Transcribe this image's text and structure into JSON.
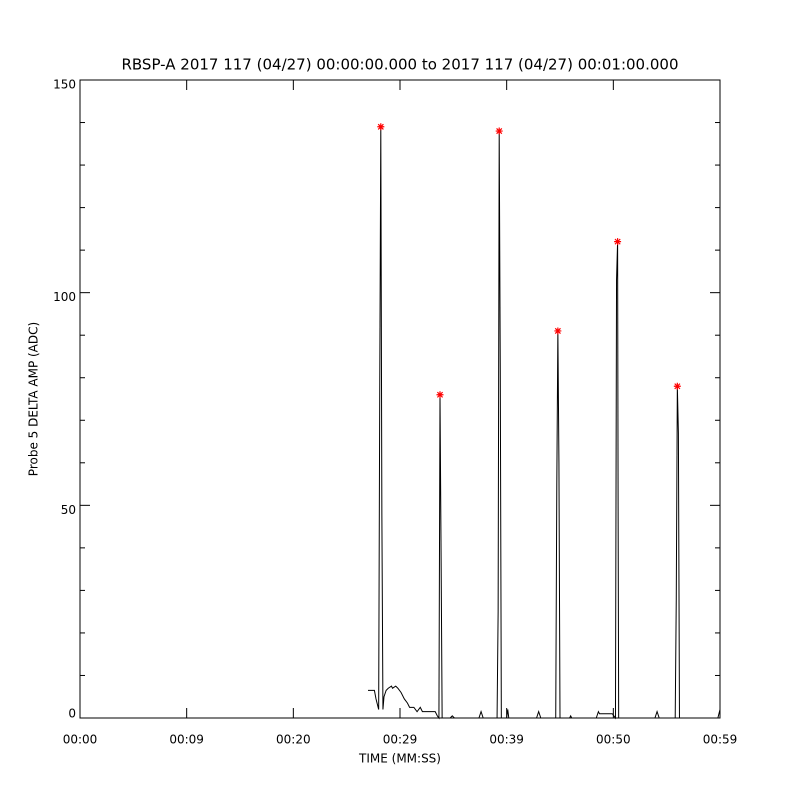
{
  "chart_data": {
    "type": "line",
    "title": "RBSP-A 2017 117 (04/27) 00:00:00.000 to 2017 117 (04/27) 00:01:00.000",
    "x_label": "TIME (MM:SS)",
    "y_label": "Probe 5 DELTA AMP (ADC)",
    "xlim": [
      0,
      60
    ],
    "ylim": [
      0,
      150
    ],
    "xticks": [
      {
        "value": 0,
        "label": "00:00"
      },
      {
        "value": 10,
        "label": "00:09"
      },
      {
        "value": 20,
        "label": "00:20"
      },
      {
        "value": 30,
        "label": "00:29"
      },
      {
        "value": 40,
        "label": "00:39"
      },
      {
        "value": 50,
        "label": "00:50"
      },
      {
        "value": 60,
        "label": "00:59"
      }
    ],
    "yticks": [
      0,
      50,
      100,
      150
    ],
    "yminorticks": [
      10,
      20,
      30,
      40,
      60,
      70,
      80,
      90,
      110,
      120,
      130,
      140
    ],
    "series": [
      {
        "color": "#000000",
        "x": [
          27.0,
          27.6,
          27.75,
          27.9,
          28.0,
          28.1,
          28.2,
          28.3,
          28.4,
          28.5,
          28.7,
          28.9,
          29.2,
          29.3,
          29.6,
          29.8,
          30.1,
          30.4,
          30.7,
          30.9,
          31.3,
          31.6,
          31.9,
          32.1,
          32.4,
          33.3,
          33.5,
          33.65,
          33.75,
          33.85,
          33.95,
          34.7,
          34.9,
          35.1,
          37.4,
          37.6,
          37.8,
          39.1,
          39.2,
          39.3,
          39.4,
          39.5,
          40.0,
          40.1,
          40.2,
          42.8,
          43.0,
          43.2,
          44.6,
          44.7,
          44.8,
          44.9,
          45.0,
          45.9,
          46.0,
          46.1,
          48.4,
          48.6,
          48.7,
          49.9,
          50.2,
          50.3,
          50.4,
          50.45,
          50.5,
          53.9,
          54.1,
          54.3,
          55.8,
          55.9,
          56.0,
          56.1,
          56.2,
          58.1,
          59.8,
          59.9,
          60.0
        ],
        "values": [
          6.5,
          6.5,
          4.5,
          3,
          2,
          77,
          139,
          48,
          2,
          5,
          6.5,
          7,
          7.5,
          7,
          7.5,
          7,
          6,
          4.5,
          3.5,
          2.5,
          2.5,
          1.5,
          2.5,
          1.5,
          1.5,
          1.5,
          0.5,
          0,
          76,
          39,
          0,
          0,
          0.5,
          0,
          0,
          1.5,
          0,
          0,
          25,
          138,
          82,
          0,
          0,
          2,
          0,
          0,
          1.5,
          0,
          0,
          55,
          91,
          60,
          0,
          0,
          0.5,
          0,
          0,
          1.5,
          1,
          1,
          0,
          103,
          112,
          47,
          0,
          0,
          1.5,
          0,
          0,
          28,
          78,
          67,
          0,
          0,
          0,
          1,
          2
        ]
      },
      {
        "color": "#ff0000",
        "marker": "star",
        "line": false,
        "x": [
          28.2,
          33.75,
          39.3,
          44.8,
          50.4,
          56.0
        ],
        "values": [
          139,
          76,
          138,
          91,
          112,
          78
        ]
      }
    ]
  }
}
